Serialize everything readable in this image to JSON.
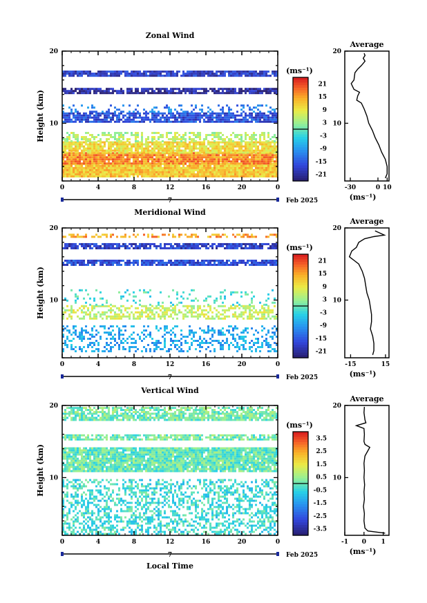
{
  "chart_data": [
    {
      "type": "heatmap",
      "title": "Zonal Wind",
      "ylabel": "Height (km)",
      "xlabel": "",
      "xlim": [
        0,
        24
      ],
      "ylim": [
        2,
        20
      ],
      "x_ticks": [
        "0",
        "4",
        "8",
        "12",
        "16",
        "20",
        "0"
      ],
      "y_ticks": [
        "20",
        "10"
      ],
      "date_marker": "7",
      "date_label": "Feb 2025",
      "colorbar": {
        "unit": "(ms⁻¹)",
        "ticks": [
          "21",
          "15",
          "9",
          "3",
          "-3",
          "-9",
          "-15",
          "-21"
        ],
        "range": [
          -24,
          24
        ]
      },
      "layers": [
        {
          "y0": 2.5,
          "y1": 4.5,
          "value": 12,
          "density": 0.97
        },
        {
          "y0": 4.5,
          "y1": 6.0,
          "value": 16,
          "density": 0.95
        },
        {
          "y0": 6.0,
          "y1": 7.5,
          "value": 10,
          "density": 0.9
        },
        {
          "y0": 7.5,
          "y1": 8.8,
          "value": 5,
          "density": 0.5
        },
        {
          "y0": 10.3,
          "y1": 11.5,
          "value": -16,
          "density": 0.85
        },
        {
          "y0": 11.5,
          "y1": 12.6,
          "value": -12,
          "density": 0.25
        },
        {
          "y0": 14.2,
          "y1": 14.9,
          "value": -21,
          "density": 0.8
        },
        {
          "y0": 16.5,
          "y1": 17.3,
          "value": -18,
          "density": 0.9
        }
      ],
      "average": {
        "title": "Average",
        "xlabel": "(ms⁻¹)",
        "xlim": [
          -36,
          12
        ],
        "x_ticks": [
          "-30",
          "0",
          "10"
        ],
        "ylim": [
          2,
          20
        ],
        "y_ticks": [
          "20",
          "10"
        ],
        "profile": [
          [
            8,
            2.4
          ],
          [
            10,
            3
          ],
          [
            10,
            4
          ],
          [
            8,
            5
          ],
          [
            4,
            6
          ],
          [
            1,
            7
          ],
          [
            -3,
            8
          ],
          [
            -6,
            9
          ],
          [
            -10,
            10
          ],
          [
            -12,
            11
          ],
          [
            -15,
            12
          ],
          [
            -18,
            12.8
          ],
          [
            -23,
            13.2
          ],
          [
            -22,
            13.8
          ],
          [
            -20,
            14.3
          ],
          [
            -26,
            14.7
          ],
          [
            -29,
            15.5
          ],
          [
            -26,
            16
          ],
          [
            -25,
            17
          ],
          [
            -22,
            17.5
          ],
          [
            -18,
            18
          ],
          [
            -14,
            18.6
          ],
          [
            -16,
            19
          ],
          [
            -14,
            19.4
          ],
          [
            -15,
            19.7
          ]
        ]
      }
    },
    {
      "type": "heatmap",
      "title": "Meridional Wind",
      "ylabel": "Height (km)",
      "xlabel": "",
      "xlim": [
        0,
        24
      ],
      "ylim": [
        2,
        20
      ],
      "x_ticks": [
        "0",
        "4",
        "8",
        "12",
        "16",
        "20",
        "0"
      ],
      "y_ticks": [
        "20",
        "10"
      ],
      "date_marker": "7",
      "date_label": "Feb 2025",
      "colorbar": {
        "unit": "(ms⁻¹)",
        "ticks": [
          "21",
          "15",
          "9",
          "3",
          "-3",
          "-9",
          "-15",
          "-21"
        ],
        "range": [
          -24,
          24
        ]
      },
      "layers": [
        {
          "y0": 3.0,
          "y1": 6.5,
          "value": -8,
          "density": 0.35
        },
        {
          "y0": 7.5,
          "y1": 9.3,
          "value": 6,
          "density": 0.5
        },
        {
          "y0": 9.3,
          "y1": 11.5,
          "value": -2,
          "density": 0.15
        },
        {
          "y0": 15.0,
          "y1": 15.6,
          "value": -16,
          "density": 0.85
        },
        {
          "y0": 17.2,
          "y1": 17.9,
          "value": -18,
          "density": 0.8
        },
        {
          "y0": 18.8,
          "y1": 19.2,
          "value": 15,
          "density": 0.5
        }
      ],
      "average": {
        "title": "Average",
        "xlabel": "(ms⁻¹)",
        "xlim": [
          -20,
          18
        ],
        "x_ticks": [
          "-15",
          "15"
        ],
        "ylim": [
          2,
          20
        ],
        "y_ticks": [
          "20",
          "10"
        ],
        "profile": [
          [
            4,
            2.4
          ],
          [
            5,
            3
          ],
          [
            5,
            4
          ],
          [
            4,
            5
          ],
          [
            2,
            6
          ],
          [
            3,
            7
          ],
          [
            3,
            8
          ],
          [
            2,
            9
          ],
          [
            1,
            10
          ],
          [
            -1,
            11
          ],
          [
            -2,
            12
          ],
          [
            -3,
            13
          ],
          [
            -5,
            14
          ],
          [
            -8,
            15
          ],
          [
            -12,
            15.5
          ],
          [
            -16,
            16
          ],
          [
            -14,
            16.8
          ],
          [
            -10,
            17.3
          ],
          [
            -8,
            18
          ],
          [
            -3,
            18.5
          ],
          [
            5,
            18.8
          ],
          [
            14,
            19
          ],
          [
            10,
            19.3
          ],
          [
            6,
            19.6
          ]
        ]
      }
    },
    {
      "type": "heatmap",
      "title": "Vertical Wind",
      "ylabel": "Height (km)",
      "xlabel": "Local Time",
      "xlim": [
        0,
        24
      ],
      "ylim": [
        2,
        20
      ],
      "x_ticks": [
        "0",
        "4",
        "8",
        "12",
        "16",
        "20",
        "0"
      ],
      "y_ticks": [
        "20",
        "10"
      ],
      "date_marker": "7",
      "date_label": "Feb 2025",
      "colorbar": {
        "unit": "(ms⁻¹)",
        "ticks": [
          "3.5",
          "2.5",
          "1.5",
          "0.5",
          "-0.5",
          "-1.5",
          "-2.5",
          "-3.5"
        ],
        "range": [
          -4,
          4
        ]
      },
      "layers": [
        {
          "y0": 2.2,
          "y1": 9.8,
          "value": -0.4,
          "density": 0.45
        },
        {
          "y0": 11.0,
          "y1": 14.2,
          "value": 0.0,
          "density": 0.92
        },
        {
          "y0": 15.4,
          "y1": 16.0,
          "value": 0.1,
          "density": 0.75
        },
        {
          "y0": 18.0,
          "y1": 19.0,
          "value": 0.1,
          "density": 0.85
        },
        {
          "y0": 19.2,
          "y1": 19.8,
          "value": 0.2,
          "density": 0.6
        }
      ],
      "average": {
        "title": "Average",
        "xlabel": "(ms⁻¹)",
        "xlim": [
          -1,
          1.3
        ],
        "x_ticks": [
          "-1",
          "0",
          "1"
        ],
        "ylim": [
          2,
          20
        ],
        "y_ticks": [
          "20",
          "10"
        ],
        "profile": [
          [
            1.1,
            2.3
          ],
          [
            0.2,
            2.6
          ],
          [
            0.05,
            3
          ],
          [
            0,
            4
          ],
          [
            0.02,
            5
          ],
          [
            -0.03,
            6
          ],
          [
            0.02,
            7
          ],
          [
            0,
            8
          ],
          [
            0.03,
            9
          ],
          [
            0,
            10
          ],
          [
            0.02,
            11
          ],
          [
            0,
            12
          ],
          [
            0.05,
            13
          ],
          [
            0.3,
            14.2
          ],
          [
            0.05,
            14.6
          ],
          [
            0,
            15
          ],
          [
            0.02,
            16
          ],
          [
            0,
            16.8
          ],
          [
            -0.4,
            17.2
          ],
          [
            0.1,
            17.6
          ],
          [
            0.05,
            18
          ],
          [
            0,
            19
          ],
          [
            0.02,
            19.8
          ]
        ]
      }
    }
  ]
}
